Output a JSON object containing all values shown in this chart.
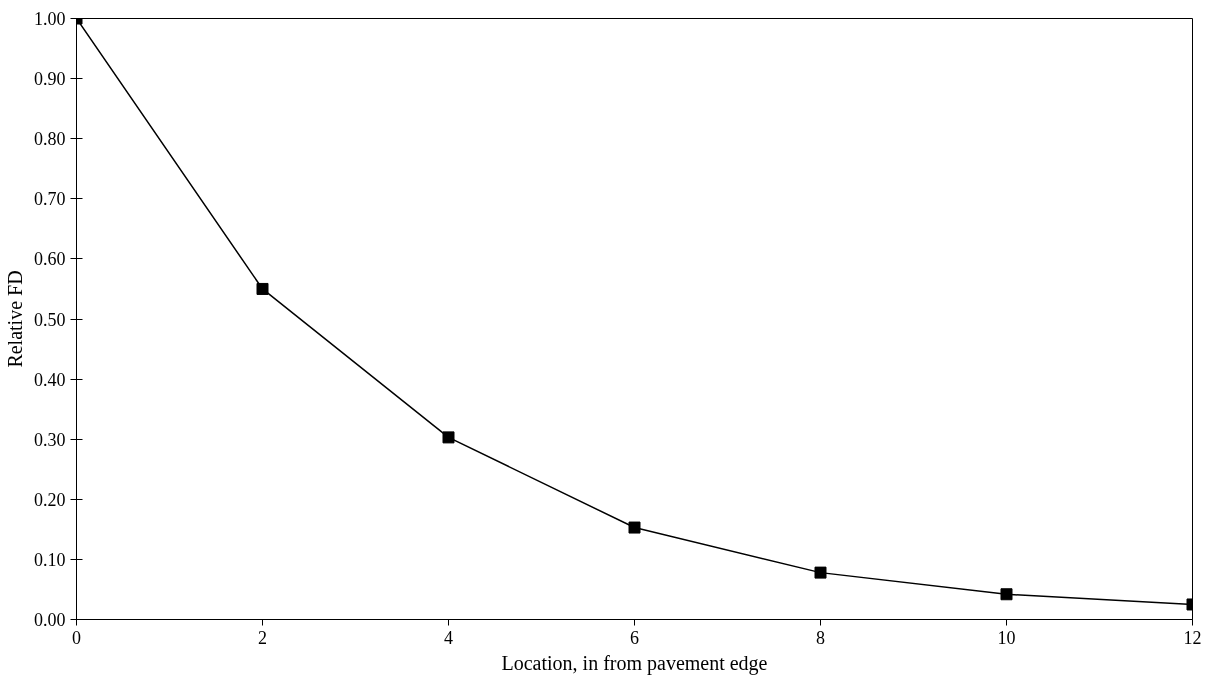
{
  "chart_data": {
    "type": "line",
    "xlabel": "Location, in from pavement edge",
    "ylabel": "Relative FD",
    "x": [
      0,
      2,
      4,
      6,
      8,
      10,
      12
    ],
    "series": [
      {
        "color": "#000000",
        "values": [
          1.0,
          0.55,
          0.303,
          0.153,
          0.078,
          0.042,
          0.025
        ]
      }
    ],
    "xlim": [
      0,
      12
    ],
    "xticks": [
      0,
      2,
      4,
      6,
      8,
      10,
      12
    ],
    "ylim": [
      0,
      1
    ],
    "yticks": [
      {
        "value": 0,
        "label": "0.00"
      },
      {
        "value": 0.1,
        "label": "0.10"
      },
      {
        "value": 0.2,
        "label": "0.20"
      },
      {
        "value": 0.3,
        "label": "0.30"
      },
      {
        "value": 0.4,
        "label": "0.40"
      },
      {
        "value": 0.5,
        "label": "0.50"
      },
      {
        "value": 0.6,
        "label": "0.60"
      },
      {
        "value": 0.7,
        "label": "0.70"
      },
      {
        "value": 0.8,
        "label": "0.80"
      },
      {
        "value": 0.9,
        "label": "0.90"
      },
      {
        "value": 1,
        "label": "1.00"
      }
    ],
    "grid": false,
    "marker": "square",
    "line_style": "solid"
  }
}
